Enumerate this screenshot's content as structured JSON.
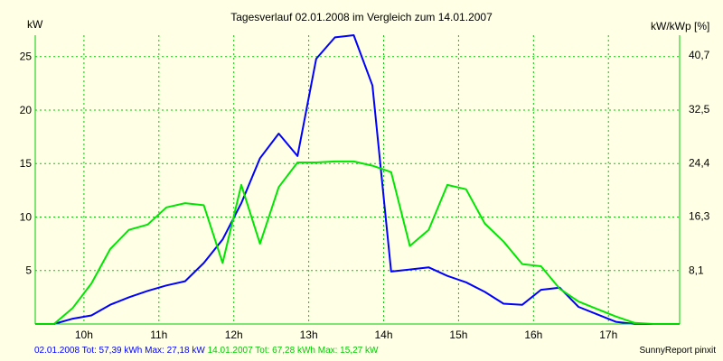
{
  "chart_data": {
    "type": "line",
    "title": "Tagesverlauf 02.01.2008 im Vergleich zum 14.01.2007",
    "ylabel_left": "kW",
    "ylabel_right": "kW/kWp [%]",
    "xlim": [
      9.35,
      17.95
    ],
    "ylim_left": [
      0,
      27
    ],
    "ylim_right": [
      0,
      43.7
    ],
    "x_ticks": [
      {
        "value": 10,
        "label": "10h"
      },
      {
        "value": 11,
        "label": "11h"
      },
      {
        "value": 12,
        "label": "12h"
      },
      {
        "value": 13,
        "label": "13h"
      },
      {
        "value": 14,
        "label": "14h"
      },
      {
        "value": 15,
        "label": "15h"
      },
      {
        "value": 16,
        "label": "16h"
      },
      {
        "value": 17,
        "label": "17h"
      }
    ],
    "y_ticks_left": [
      {
        "value": 5,
        "label": "5"
      },
      {
        "value": 10,
        "label": "10"
      },
      {
        "value": 15,
        "label": "15"
      },
      {
        "value": 20,
        "label": "20"
      },
      {
        "value": 25,
        "label": "25"
      }
    ],
    "y_ticks_right": [
      {
        "value": 8.1,
        "label": "8,1"
      },
      {
        "value": 16.3,
        "label": "16,3"
      },
      {
        "value": 24.4,
        "label": "24,4"
      },
      {
        "value": 32.5,
        "label": "32,5"
      },
      {
        "value": 40.7,
        "label": "40,7"
      }
    ],
    "grid": true,
    "series": [
      {
        "name": "02.01.2008",
        "color": "#0000ff",
        "x": [
          9.35,
          9.6,
          9.85,
          10.1,
          10.35,
          10.6,
          10.85,
          11.1,
          11.35,
          11.6,
          11.85,
          12.1,
          12.35,
          12.6,
          12.85,
          13.1,
          13.35,
          13.6,
          13.85,
          14.1,
          14.35,
          14.6,
          14.85,
          15.1,
          15.35,
          15.6,
          15.85,
          16.1,
          16.35,
          16.6,
          16.85,
          17.1,
          17.35,
          17.6,
          17.95
        ],
        "values": [
          0,
          0,
          0.5,
          0.8,
          1.8,
          2.5,
          3.1,
          3.6,
          4.0,
          5.7,
          7.9,
          11.3,
          15.5,
          17.8,
          15.7,
          24.8,
          26.8,
          27.0,
          22.3,
          4.9,
          5.1,
          5.3,
          4.5,
          3.9,
          3.0,
          1.9,
          1.8,
          3.2,
          3.4,
          1.6,
          0.9,
          0.2,
          0,
          0,
          0
        ]
      },
      {
        "name": "14.01.2007",
        "color": "#00e600",
        "x": [
          9.35,
          9.6,
          9.85,
          10.1,
          10.35,
          10.6,
          10.85,
          11.1,
          11.35,
          11.6,
          11.85,
          12.1,
          12.35,
          12.6,
          12.85,
          13.1,
          13.35,
          13.6,
          13.85,
          14.1,
          14.35,
          14.6,
          14.85,
          15.1,
          15.35,
          15.6,
          15.85,
          16.1,
          16.35,
          16.6,
          16.85,
          17.1,
          17.35,
          17.6,
          17.95
        ],
        "values": [
          0,
          0,
          1.5,
          3.8,
          7.0,
          8.8,
          9.3,
          10.9,
          11.3,
          11.1,
          5.7,
          13.0,
          7.5,
          12.8,
          15.1,
          15.1,
          15.2,
          15.2,
          14.8,
          14.2,
          7.3,
          8.8,
          13.0,
          12.6,
          9.4,
          7.7,
          5.6,
          5.4,
          3.3,
          2.1,
          1.4,
          0.7,
          0.1,
          0,
          0
        ]
      }
    ]
  },
  "footer": {
    "series1_summary": "02.01.2008 Tot: 57,39 kWh Max: 27,18 kW",
    "series2_summary": "14.01.2007 Tot: 67,28 kWh Max: 15,27 kW",
    "credit": "SunnyReport pinxit"
  }
}
